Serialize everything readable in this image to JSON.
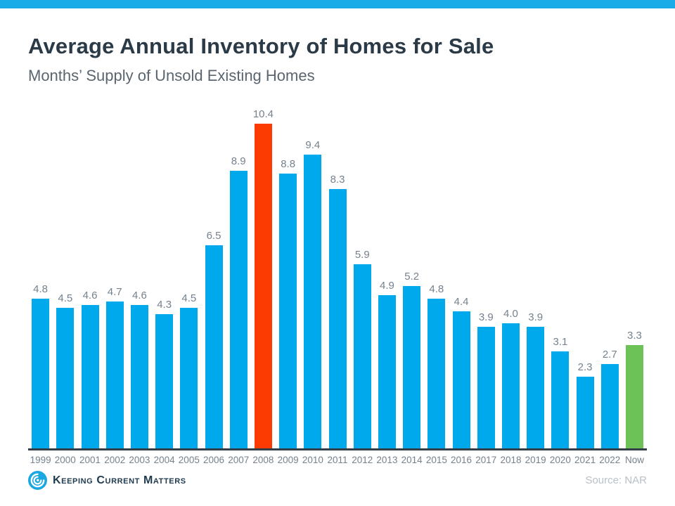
{
  "page": {
    "title": "Average Annual Inventory of Homes for Sale",
    "subtitle": "Months’ Supply of Unsold Existing Homes",
    "brand": "Keeping Current Matters",
    "source": "Source: NAR"
  },
  "colors": {
    "top_strip": "#1AABE9",
    "bar_default": "#00A8EC",
    "bar_highlight_red": "#FB3B02",
    "bar_highlight_green": "#6CC157",
    "axis_line": "#333F48",
    "label_gray": "#75828E",
    "title_dark": "#2B3A47",
    "logo_blue": "#1BA7E0"
  },
  "chart_data": {
    "type": "bar",
    "title": "Average Annual Inventory of Homes for Sale",
    "subtitle": "Months’ Supply of Unsold Existing Homes",
    "xlabel": "",
    "ylabel": "Months' Supply",
    "ylim": [
      0,
      10.4
    ],
    "grid": false,
    "legend": "none",
    "categories": [
      "1999",
      "2000",
      "2001",
      "2002",
      "2003",
      "2004",
      "2005",
      "2006",
      "2007",
      "2008",
      "2009",
      "2010",
      "2011",
      "2012",
      "2013",
      "2014",
      "2015",
      "2016",
      "2017",
      "2018",
      "2019",
      "2020",
      "2021",
      "2022",
      "Now"
    ],
    "values": [
      4.8,
      4.5,
      4.6,
      4.7,
      4.6,
      4.3,
      4.5,
      6.5,
      8.9,
      10.4,
      8.8,
      9.4,
      8.3,
      5.9,
      4.9,
      5.2,
      4.8,
      4.4,
      3.9,
      4.0,
      3.9,
      3.1,
      2.3,
      2.7,
      3.3
    ],
    "value_labels": [
      "4.8",
      "4.5",
      "4.6",
      "4.7",
      "4.6",
      "4.3",
      "4.5",
      "6.5",
      "8.9",
      "10.4",
      "8.8",
      "9.4",
      "8.3",
      "5.9",
      "4.9",
      "5.2",
      "4.8",
      "4.4",
      "3.9",
      "4.0",
      "3.9",
      "3.1",
      "2.3",
      "2.7",
      "3.3"
    ],
    "bar_colors": {
      "default": "#00A8EC",
      "2008": "#FB3B02",
      "Now": "#6CC157"
    }
  }
}
